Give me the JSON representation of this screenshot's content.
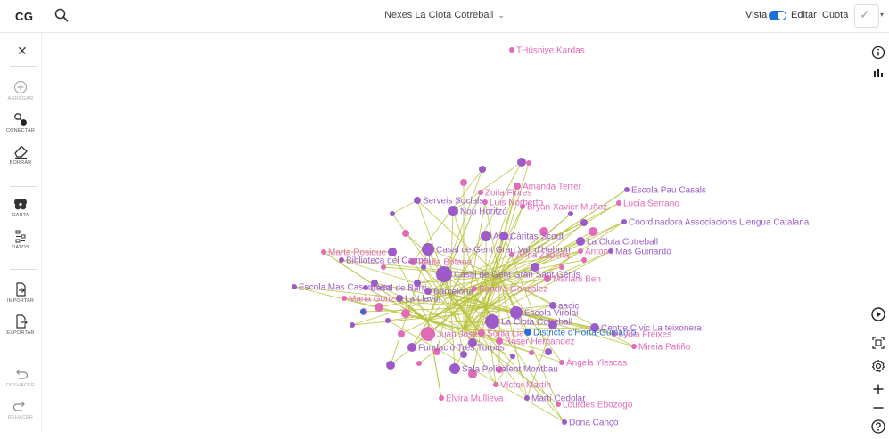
{
  "topbar": {
    "logo": "CG",
    "title": "Nexes La Clota Cotreball",
    "view_label": "Vista",
    "edit_label": "Editar",
    "quota_label": "Cuota",
    "toggle_on": true
  },
  "sidebar": {
    "tools": [
      {
        "name": "add",
        "label": "AGREGAR",
        "icon": "plus-circle-icon",
        "enabled": false
      },
      {
        "name": "connect",
        "label": "CONECTAR",
        "icon": "connect-icon",
        "enabled": true
      },
      {
        "name": "delete",
        "label": "BORRAR",
        "icon": "eraser-icon",
        "enabled": true
      },
      {
        "name": "map",
        "label": "CARTA",
        "icon": "map-icon",
        "enabled": true
      },
      {
        "name": "data",
        "label": "DATOS",
        "icon": "data-icon",
        "enabled": true
      },
      {
        "name": "import",
        "label": "IMPORTAR",
        "icon": "import-icon",
        "enabled": true
      },
      {
        "name": "export",
        "label": "EXPORTAR",
        "icon": "export-icon",
        "enabled": true
      },
      {
        "name": "undo",
        "label": "DESHACER",
        "icon": "undo-icon",
        "enabled": false
      },
      {
        "name": "redo",
        "label": "REHACER",
        "icon": "redo-icon",
        "enabled": false
      }
    ]
  },
  "rightbar": {
    "icons": [
      "info-icon",
      "stats-icon",
      "play-icon",
      "fit-screen-icon",
      "settings-icon",
      "zoom-in-icon",
      "zoom-out-icon",
      "help-icon"
    ]
  },
  "colors": {
    "pink": "#e36ab8",
    "purple": "#9c5bc8",
    "blue": "#2a6fd1",
    "edge": "#b7c23a",
    "accent": "#1f6fd6"
  },
  "graph": {
    "labels": [
      {
        "text": "THüsniye Kardas",
        "color": "pink"
      },
      {
        "text": "Amanda Terrer",
        "color": "pink"
      },
      {
        "text": "Zoila Flores",
        "color": "pink"
      },
      {
        "text": "Serveis Socials",
        "color": "purple"
      },
      {
        "text": "Luis Norberto",
        "color": "pink"
      },
      {
        "text": "Nou Horitzó",
        "color": "purple"
      },
      {
        "text": "Bryan Xavier Muñoz",
        "color": "pink"
      },
      {
        "text": "Escola Pau Casals",
        "color": "purple"
      },
      {
        "text": "Lucía Serrano",
        "color": "pink"
      },
      {
        "text": "Coordinadora Associacions Llengua Catalana",
        "color": "purple"
      },
      {
        "text": "Agru",
        "color": "purple"
      },
      {
        "text": "Càritas Scout",
        "color": "purple"
      },
      {
        "text": "La Clota Cotreball",
        "color": "purple"
      },
      {
        "text": "Casal de Gent Gran Vall d'Hebron",
        "color": "purple"
      },
      {
        "text": "Anna Zapsna",
        "color": "pink"
      },
      {
        "text": "Anton",
        "color": "pink"
      },
      {
        "text": "Mas Guinardó",
        "color": "purple"
      },
      {
        "text": "Marta Rosique",
        "color": "pink"
      },
      {
        "text": "Biblioteca del Carmel",
        "color": "purple"
      },
      {
        "text": "Paula Botana",
        "color": "pink"
      },
      {
        "text": "Casal de Gent Gran Sant Genís",
        "color": "purple"
      },
      {
        "text": "Escola Mas Casanovas",
        "color": "purple"
      },
      {
        "text": "Casal de Barri",
        "color": "purple"
      },
      {
        "text": "Barcelona",
        "color": "purple"
      },
      {
        "text": "Sandra Gonzalez",
        "color": "pink"
      },
      {
        "text": "Mariam Ben",
        "color": "pink"
      },
      {
        "text": "Maria Gonz",
        "color": "pink"
      },
      {
        "text": "La Llavor",
        "color": "purple"
      },
      {
        "text": "Escola Virolai",
        "color": "purple"
      },
      {
        "text": "aacic",
        "color": "purple"
      },
      {
        "text": "La Clota Cotreball",
        "color": "purple"
      },
      {
        "text": "Centre Cívic La teixonera",
        "color": "purple"
      },
      {
        "text": "Juan José",
        "color": "pink"
      },
      {
        "text": "Sonia Lia",
        "color": "pink"
      },
      {
        "text": "Districte d'Horta-Guinardó",
        "color": "blue"
      },
      {
        "text": "Lydia Freixes",
        "color": "pink"
      },
      {
        "text": "Roser Hernandez",
        "color": "pink"
      },
      {
        "text": "Fundació Tres Turons",
        "color": "purple"
      },
      {
        "text": "Mireia Patiño",
        "color": "pink"
      },
      {
        "text": "Àngels Ylescas",
        "color": "pink"
      },
      {
        "text": "Sala Polivalent Montbau",
        "color": "purple"
      },
      {
        "text": "Víctor Martín",
        "color": "pink"
      },
      {
        "text": "Elvira Mullieva",
        "color": "pink"
      },
      {
        "text": "Martí Cedolar",
        "color": "purple"
      },
      {
        "text": "Lourdes Ebozogo",
        "color": "pink"
      },
      {
        "text": "Dona Cançó",
        "color": "purple"
      }
    ]
  }
}
